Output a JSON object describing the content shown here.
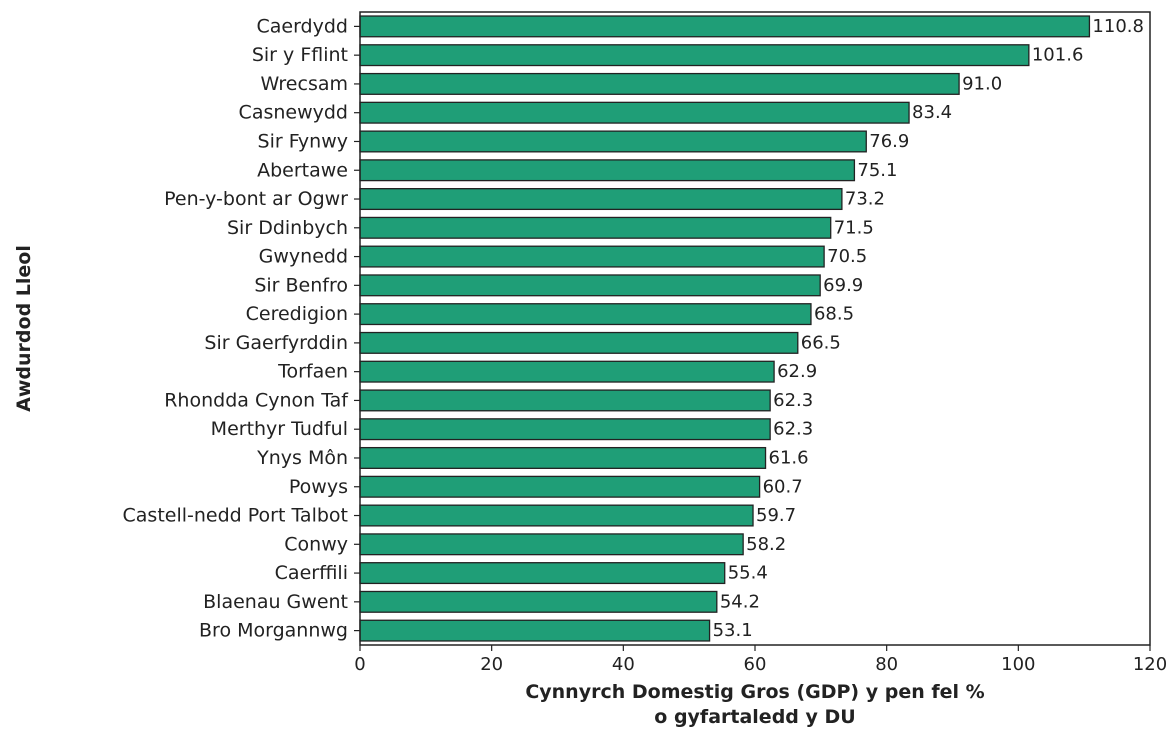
{
  "chart_data": {
    "type": "bar",
    "orientation": "horizontal",
    "categories": [
      "Caerdydd",
      "Sir y Fflint",
      "Wrecsam",
      "Casnewydd",
      "Sir Fynwy",
      "Abertawe",
      "Pen-y-bont ar Ogwr",
      "Sir Ddinbych",
      "Gwynedd",
      "Sir Benfro",
      "Ceredigion",
      "Sir Gaerfyrddin",
      "Torfaen",
      "Rhondda Cynon Taf",
      "Merthyr Tudful",
      "Ynys Môn",
      "Powys",
      "Castell-nedd Port Talbot",
      "Conwy",
      "Caerffili",
      "Blaenau Gwent",
      "Bro Morgannwg"
    ],
    "values": [
      110.8,
      101.6,
      91.0,
      83.4,
      76.9,
      75.1,
      73.2,
      71.5,
      70.5,
      69.9,
      68.5,
      66.5,
      62.9,
      62.3,
      62.3,
      61.6,
      60.7,
      59.7,
      58.2,
      55.4,
      54.2,
      53.1
    ],
    "value_labels": [
      "110.8",
      "101.6",
      "91.0",
      "83.4",
      "76.9",
      "75.1",
      "73.2",
      "71.5",
      "70.5",
      "69.9",
      "68.5",
      "66.5",
      "62.9",
      "62.3",
      "62.3",
      "61.6",
      "60.7",
      "59.7",
      "58.2",
      "55.4",
      "54.2",
      "53.1"
    ],
    "xlim": [
      0,
      120
    ],
    "xticks": [
      0,
      20,
      40,
      60,
      80,
      100,
      120
    ],
    "xlabel_lines": [
      "Cynnyrch Domestig Gros (GDP) y pen fel %",
      "o gyfartaledd y DU"
    ],
    "ylabel": "Awdurdod Lleol",
    "grid": false,
    "legend": "none",
    "colors": {
      "bar_fill": "#1f9e77",
      "bar_edge": "#222222",
      "axis": "#222222"
    }
  }
}
